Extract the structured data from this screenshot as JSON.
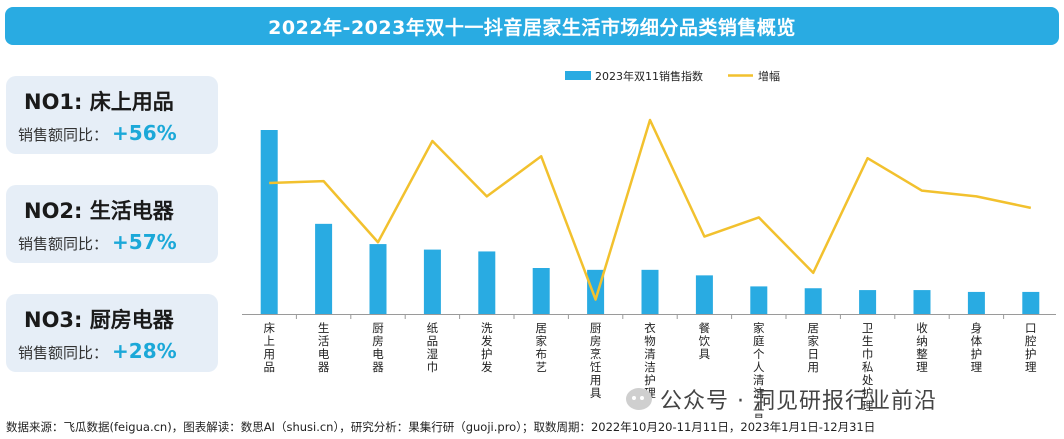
{
  "title": "2022年-2023年双十一抖音居家生活市场细分品类销售概览",
  "cards": [
    {
      "rank": "NO1:  床上用品",
      "label": "销售额同比：",
      "value": "+56%"
    },
    {
      "rank": "NO2:  生活电器",
      "label": "销售额同比：",
      "value": "+57%"
    },
    {
      "rank": "NO3:  厨房电器",
      "label": "销售额同比：",
      "value": "+28%"
    }
  ],
  "footer": "数据来源：飞瓜数据(feigua.cn)，图表解读：数思AI（shusi.cn），研究分析：果集行研（guoji.pro）；取数周期：2022年10月20-11月11日，2023年1月1日-12月31日",
  "wechat": "公众号 · 洞见研报行业前沿",
  "colors": {
    "bar": "#29abe2",
    "line": "#f2c12e",
    "title_bg": "#29abe2"
  },
  "chart_data": {
    "type": "bar",
    "categories": [
      "床上用品",
      "生活电器",
      "厨房电器",
      "纸品湿巾",
      "洗发护发",
      "居家布艺",
      "厨房烹饪用具",
      "衣物清洁护理",
      "餐饮具",
      "家庭个人清洁工具",
      "居家日用",
      "卫生巾私处护理",
      "收纳整理",
      "身体护理",
      "口腔护理"
    ],
    "series": [
      {
        "name": "2023年双11销售指数",
        "type": "bar",
        "values": [
          100,
          49,
          38,
          35,
          34,
          25,
          24,
          24,
          21,
          15,
          14,
          13,
          13,
          12,
          12
        ]
      },
      {
        "name": "增幅",
        "type": "line",
        "values": [
          67,
          68,
          36,
          89,
          60,
          81,
          6,
          100,
          39,
          49,
          20,
          80,
          63,
          60,
          54
        ]
      }
    ],
    "legend": "top-center",
    "grid": false
  }
}
